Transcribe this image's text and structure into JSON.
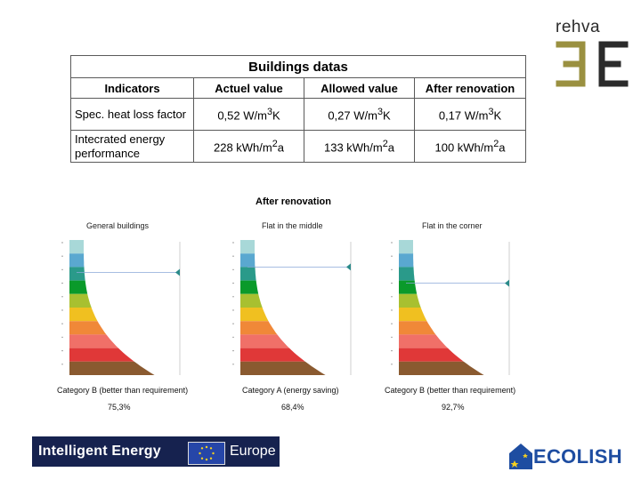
{
  "logos": {
    "rehva_word": "rehva",
    "intelligent_energy": "Intelligent Energy",
    "europe": "Europe",
    "ecolish": "ECOLISH"
  },
  "table": {
    "title": "Buildings datas",
    "headers": [
      "Indicators",
      "Actuel value",
      "Allowed value",
      "After renovation"
    ],
    "rows": [
      {
        "indicator": "Spec. heat loss factor",
        "actuel": {
          "num": "0,52 W/m",
          "sup": "3",
          "unit": "K"
        },
        "allowed": {
          "num": "0,27 W/m",
          "sup": "3",
          "unit": "K"
        },
        "after": {
          "num": "0,17 W/m",
          "sup": "3",
          "unit": "K"
        }
      },
      {
        "indicator": "Intecrated energy performance",
        "actuel": {
          "num": "228 kWh/m",
          "sup": "2",
          "unit": "a"
        },
        "allowed": {
          "num": "133 kWh/m",
          "sup": "2",
          "unit": "a"
        },
        "after": {
          "num": "100 kWh/m",
          "sup": "2",
          "unit": "a"
        }
      }
    ]
  },
  "charts": {
    "title": "After renovation",
    "colors": [
      "#a8d8d8",
      "#5aa8d0",
      "#2a9a8a",
      "#0a9a2a",
      "#a8c030",
      "#f0c020",
      "#f08838",
      "#f07068",
      "#e03838",
      "#8a5a30",
      "#3a3a3a"
    ],
    "panels": [
      {
        "subtitle": "General buildings",
        "caption": "Category B (better than requirement)",
        "percent": "75,3%",
        "marker_level": 2.4
      },
      {
        "subtitle": "Flat in the middle",
        "caption": "Category A (energy saving)",
        "percent": "68,4%",
        "marker_level": 2.0
      },
      {
        "subtitle": "Flat in the corner",
        "caption": "Category B (better than requirement)",
        "percent": "92,7%",
        "marker_level": 3.2
      }
    ]
  }
}
